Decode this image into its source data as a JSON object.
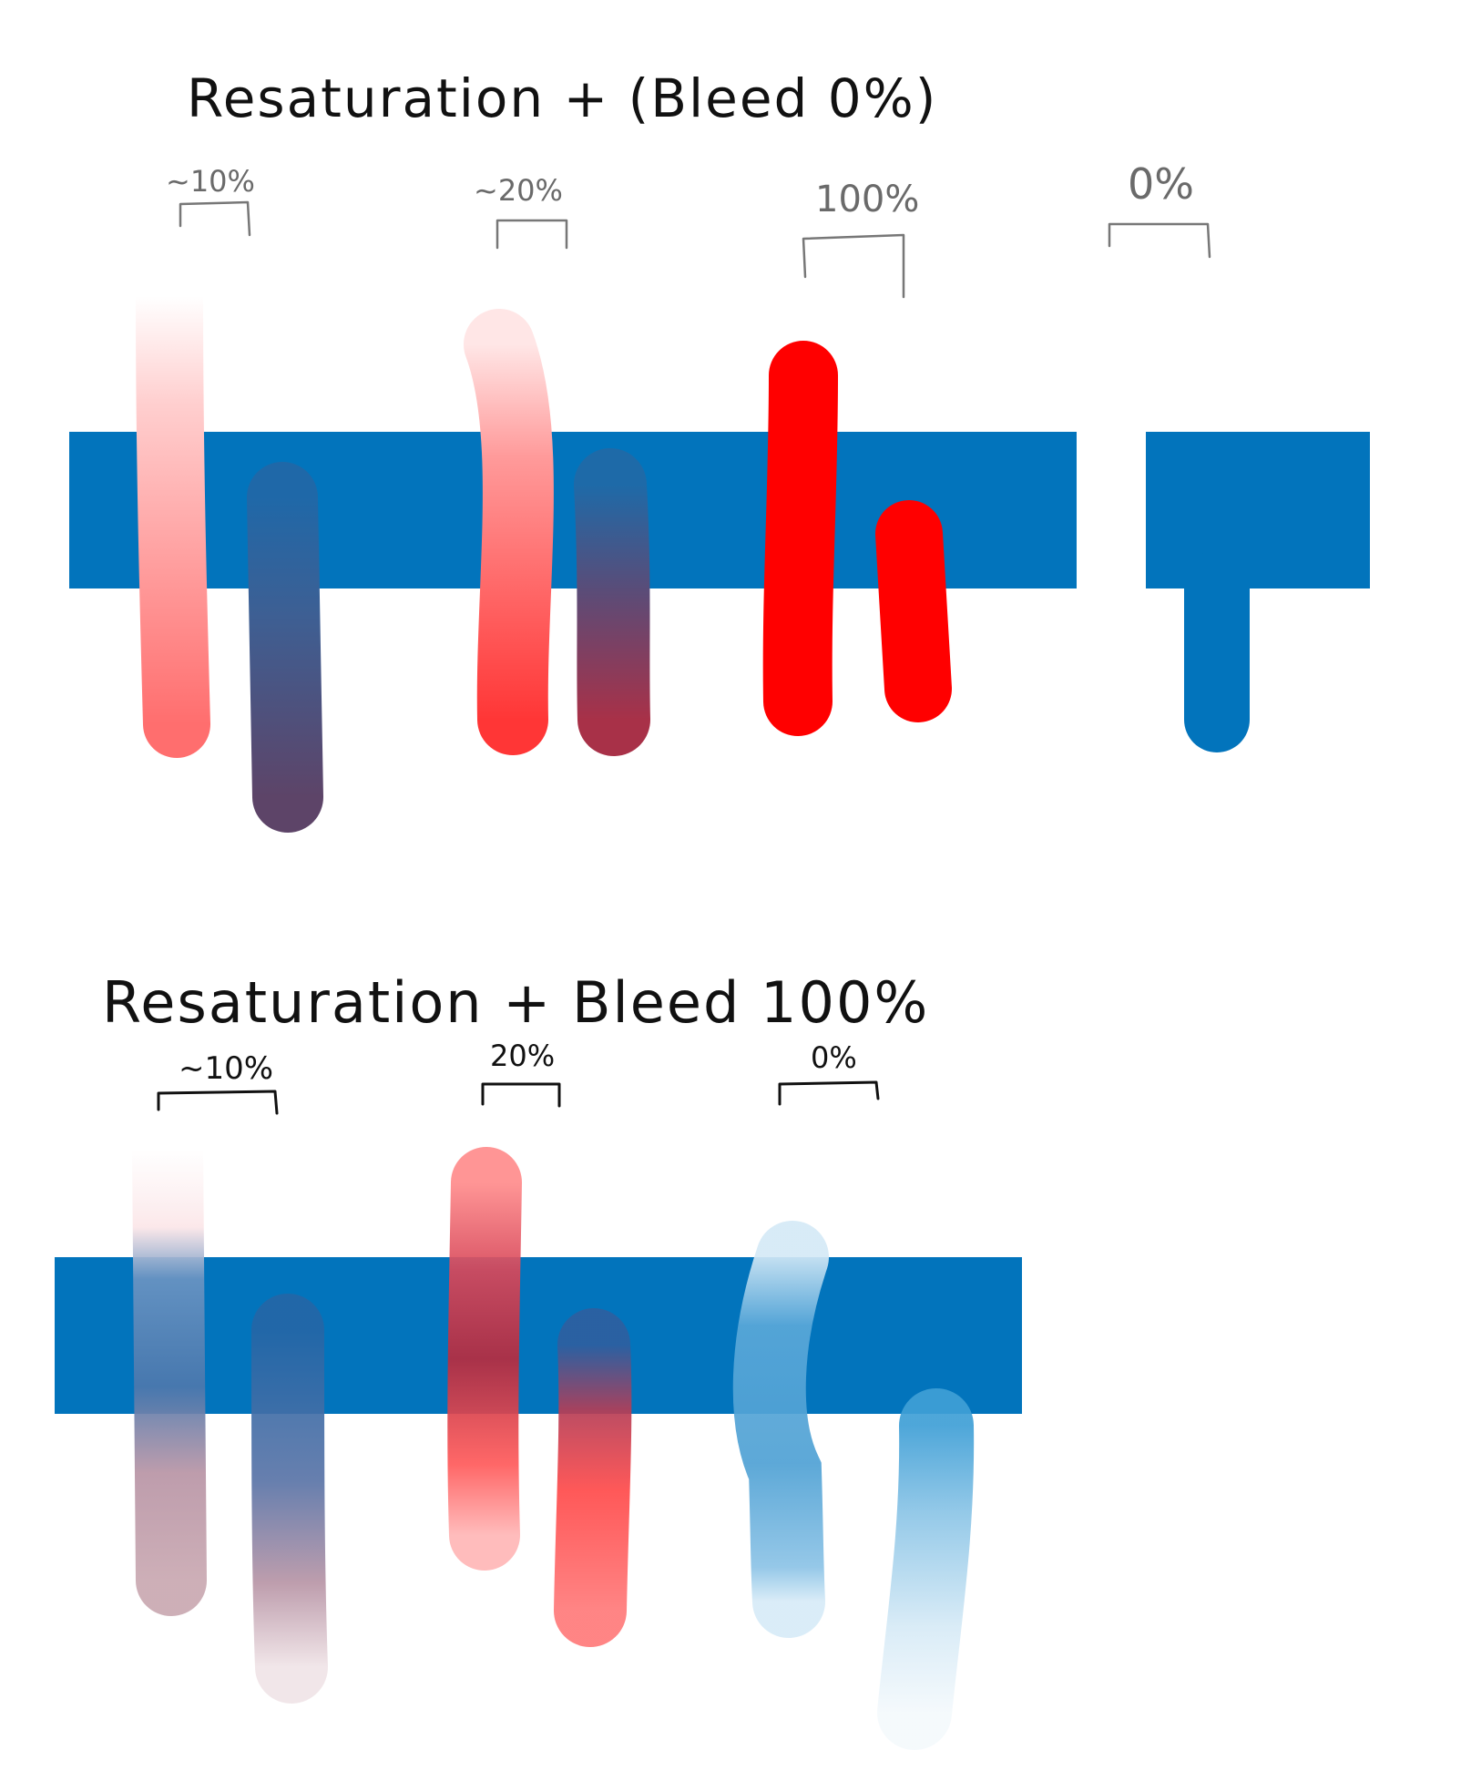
{
  "colors": {
    "background": "#ffffff",
    "band": "#0274bc",
    "red": "#ff0000",
    "light_red": "#ff6e6e",
    "muted_purple": "#5b4566",
    "blue_stroke": "#0274bc",
    "light_blue": "#4fa6d6"
  },
  "panel_top": {
    "title": "Resaturation + (Bleed 0%)",
    "labels": [
      "~10%",
      "~20%",
      "100%",
      "0%"
    ],
    "resaturation_levels": [
      10,
      20,
      100,
      0
    ],
    "bleed_percent": 0
  },
  "panel_bottom": {
    "title": "Resaturation + Bleed 100%",
    "labels": [
      "~10%",
      "20%",
      "0%"
    ],
    "resaturation_levels": [
      10,
      20,
      0
    ],
    "bleed_percent": 100
  }
}
